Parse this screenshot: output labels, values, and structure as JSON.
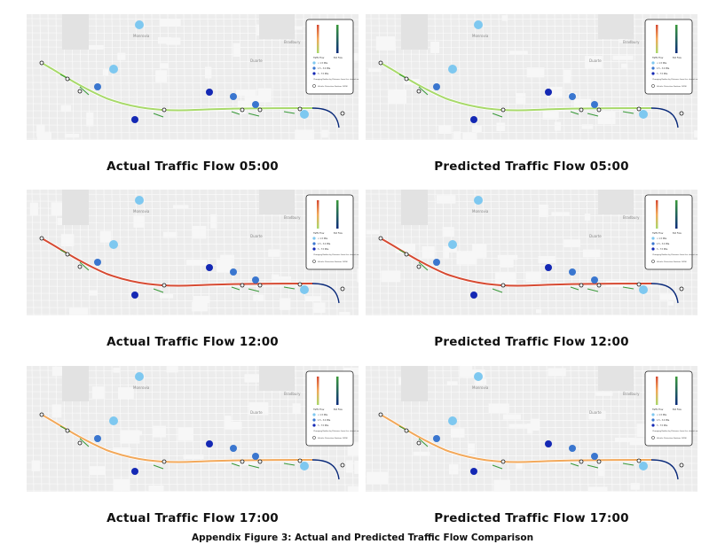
{
  "figure_caption": "Appendix Figure 3: Actual and Predicted Traffic Flow Comparison",
  "map_labels": {
    "top": "Monrovia",
    "right": "Duarte",
    "upper_right": "Bradbury"
  },
  "legend": {
    "traffic_flow_heading": "Traffic Flow",
    "exit_flow_heading": "Exit Flow",
    "ramp_bins": [
      "< 1.5 Mile",
      "1.5 - 3.0 Mile",
      "3 - 7.5 Mile"
    ],
    "ramp_colors": [
      "#7ec8f0",
      "#3a76cf",
      "#1428b4"
    ],
    "ramp_note": "Changing Radius by Distance from the closest exit",
    "detector_label": "Vehicle Detection Stations (VDS)"
  },
  "palette": {
    "flow_low": "#a8d96a",
    "flow_mid": "#f2a85a",
    "flow_high": "#d64a32",
    "exit_low": "#3a9a3a",
    "exit_high": "#0a2a7a"
  },
  "panels": [
    {
      "caption": "Actual Traffic Flow 05:00",
      "flow_level": "low"
    },
    {
      "caption": "Predicted Traffic Flow 05:00",
      "flow_level": "low"
    },
    {
      "caption": "Actual Traffic Flow 12:00",
      "flow_level": "high"
    },
    {
      "caption": "Predicted Traffic Flow 12:00",
      "flow_level": "high"
    },
    {
      "caption": "Actual Traffic Flow 17:00",
      "flow_level": "mid"
    },
    {
      "caption": "Predicted Traffic Flow 17:00",
      "flow_level": "mid"
    }
  ]
}
